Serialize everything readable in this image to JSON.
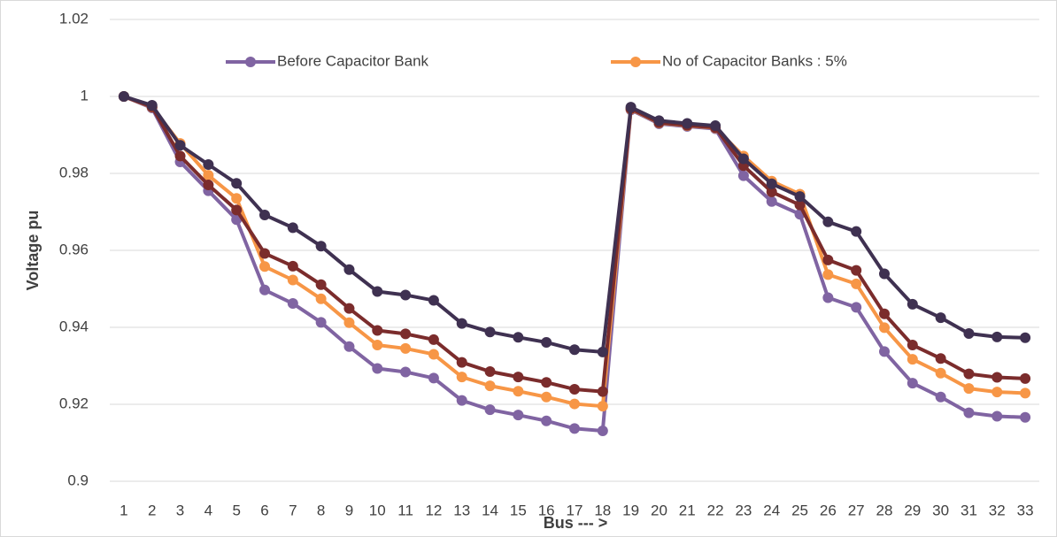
{
  "chart_data": {
    "type": "line",
    "x_label": "Bus --- >",
    "y_label": "Voltage pu",
    "categories": [
      "1",
      "2",
      "3",
      "4",
      "5",
      "6",
      "7",
      "8",
      "9",
      "10",
      "11",
      "12",
      "13",
      "14",
      "15",
      "16",
      "17",
      "18",
      "19",
      "20",
      "21",
      "22",
      "23",
      "24",
      "25",
      "26",
      "27",
      "28",
      "29",
      "30",
      "31",
      "32",
      "33"
    ],
    "series": [
      {
        "name": "Before Capacitor Bank",
        "color": "#8064a2",
        "values": [
          1.0,
          0.997,
          0.983,
          0.9755,
          0.968,
          0.9497,
          0.9462,
          0.9413,
          0.935,
          0.9293,
          0.9284,
          0.9268,
          0.921,
          0.9186,
          0.9172,
          0.9157,
          0.9137,
          0.9131,
          0.9965,
          0.9929,
          0.9922,
          0.9916,
          0.9794,
          0.9727,
          0.9694,
          0.9477,
          0.9452,
          0.9337,
          0.9255,
          0.9219,
          0.9178,
          0.9169,
          0.9166
        ]
      },
      {
        "name": "No of Capacitor Banks : 5%",
        "color": "#f79646",
        "values": [
          1.0,
          0.9972,
          0.9878,
          0.9795,
          0.9735,
          0.9558,
          0.9523,
          0.9474,
          0.9412,
          0.9354,
          0.9345,
          0.933,
          0.9271,
          0.9248,
          0.9234,
          0.9219,
          0.9201,
          0.9195,
          0.9967,
          0.9931,
          0.9924,
          0.9918,
          0.9845,
          0.978,
          0.9746,
          0.9537,
          0.9513,
          0.9399,
          0.9317,
          0.9281,
          0.9241,
          0.9232,
          0.9229
        ]
      },
      {
        "color": "#7b2c2c",
        "values": [
          1.0,
          0.9973,
          0.9845,
          0.977,
          0.9705,
          0.9592,
          0.9559,
          0.9511,
          0.9449,
          0.9392,
          0.9383,
          0.9368,
          0.9309,
          0.9285,
          0.9271,
          0.9257,
          0.9239,
          0.9233,
          0.9968,
          0.9932,
          0.9925,
          0.9919,
          0.982,
          0.9752,
          0.9718,
          0.9575,
          0.9548,
          0.9435,
          0.9354,
          0.9319,
          0.9279,
          0.927,
          0.9267
        ]
      },
      {
        "color": "#3f3151",
        "values": [
          1.0,
          0.9977,
          0.9873,
          0.9823,
          0.9774,
          0.9692,
          0.9659,
          0.9611,
          0.955,
          0.9493,
          0.9484,
          0.947,
          0.941,
          0.9388,
          0.9374,
          0.9361,
          0.9342,
          0.9336,
          0.9972,
          0.9937,
          0.993,
          0.9924,
          0.9838,
          0.9773,
          0.974,
          0.9674,
          0.9649,
          0.9539,
          0.946,
          0.9425,
          0.9384,
          0.9375,
          0.9373
        ]
      }
    ],
    "ylim": [
      0.9,
      1.02
    ],
    "yticks": [
      0.9,
      0.92,
      0.94,
      0.96,
      0.98,
      1,
      1.02
    ],
    "grid": true,
    "legend": "top"
  }
}
